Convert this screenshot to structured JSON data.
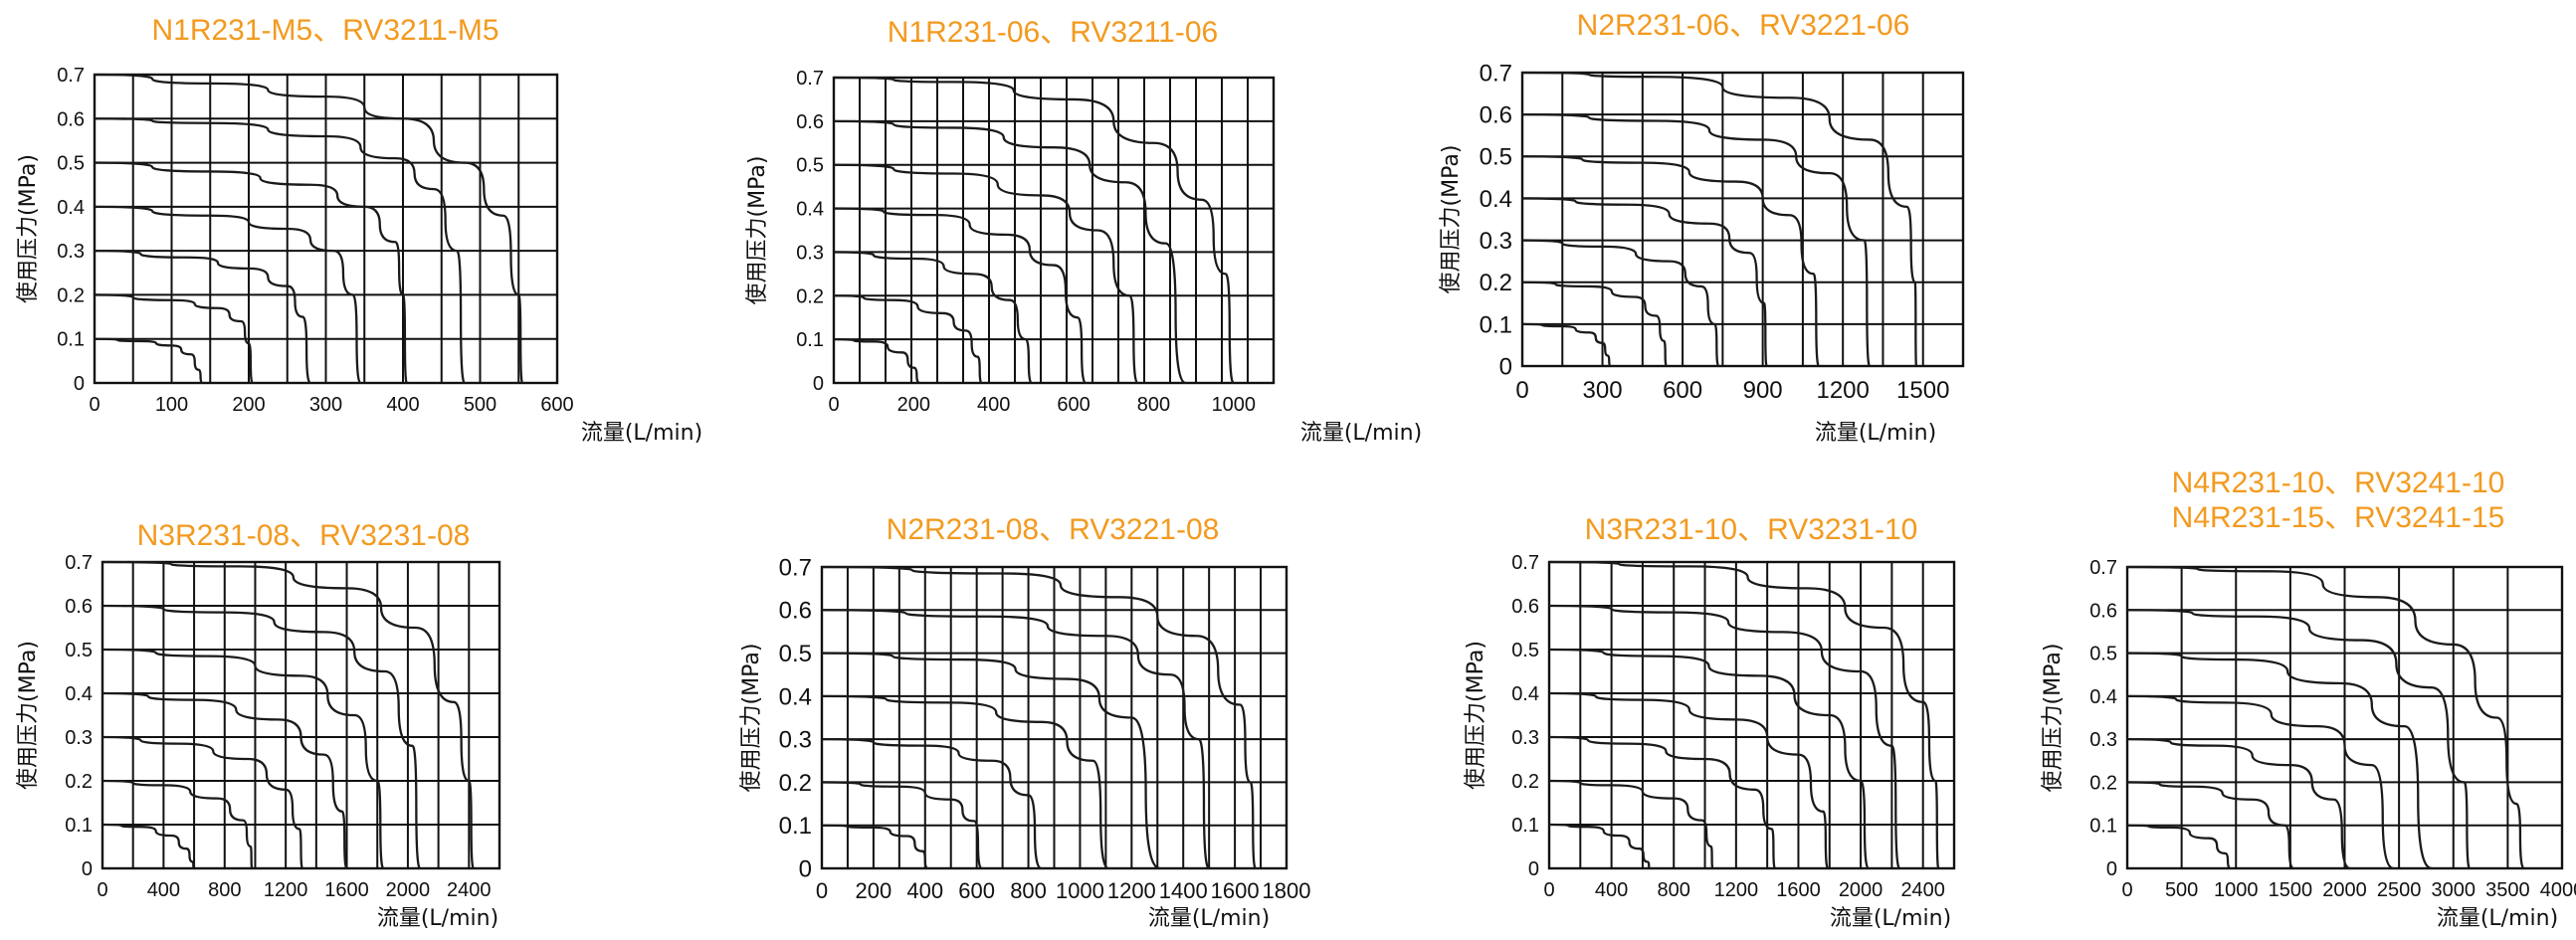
{
  "chart_data": [
    {
      "type": "line",
      "title": "N1R231-M5、RV3211-M5",
      "xlabel": "流量(L/min)",
      "ylabel": "使用压力(MPa)",
      "xlim": [
        0,
        600
      ],
      "ylim": [
        0,
        0.7
      ],
      "xticks": [
        "0",
        "100",
        "200",
        "300",
        "400",
        "500",
        "600"
      ],
      "yticks": [
        "0",
        "0.1",
        "0.2",
        "0.3",
        "0.4",
        "0.5",
        "0.6",
        "0.7"
      ],
      "grid": true,
      "series": [
        {
          "p": 0.1,
          "x": [
            0,
            60,
            100,
            125,
            135,
            140
          ],
          "y": [
            0.1,
            0.095,
            0.085,
            0.065,
            0.03,
            0
          ]
        },
        {
          "p": 0.2,
          "x": [
            0,
            100,
            160,
            190,
            200,
            205
          ],
          "y": [
            0.2,
            0.188,
            0.17,
            0.14,
            0.09,
            0
          ]
        },
        {
          "p": 0.3,
          "x": [
            0,
            120,
            200,
            250,
            270,
            280
          ],
          "y": [
            0.3,
            0.285,
            0.26,
            0.22,
            0.15,
            0
          ]
        },
        {
          "p": 0.4,
          "x": [
            0,
            150,
            250,
            310,
            335,
            345
          ],
          "y": [
            0.4,
            0.38,
            0.35,
            0.3,
            0.2,
            0
          ]
        },
        {
          "p": 0.5,
          "x": [
            0,
            150,
            280,
            350,
            390,
            400,
            405
          ],
          "y": [
            0.5,
            0.48,
            0.45,
            0.4,
            0.32,
            0.2,
            0
          ]
        },
        {
          "p": 0.6,
          "x": [
            0,
            150,
            300,
            390,
            440,
            470,
            480
          ],
          "y": [
            0.6,
            0.59,
            0.56,
            0.51,
            0.44,
            0.3,
            0
          ]
        },
        {
          "p": 0.7,
          "x": [
            0,
            150,
            300,
            400,
            480,
            530,
            550,
            555
          ],
          "y": [
            0.7,
            0.68,
            0.65,
            0.6,
            0.5,
            0.38,
            0.2,
            0
          ]
        }
      ]
    },
    {
      "type": "line",
      "title": "N1R231-06、RV3211-06",
      "xlabel": "流量(L/min)",
      "ylabel": "使用压力(MPa)",
      "xlim": [
        0,
        1100
      ],
      "ylim": [
        0,
        0.7
      ],
      "xticks": [
        "0",
        "200",
        "400",
        "600",
        "800",
        "1000"
      ],
      "yticks": [
        "0",
        "0.1",
        "0.2",
        "0.3",
        "0.4",
        "0.5",
        "0.6",
        "0.7"
      ],
      "grid": true,
      "series": [
        {
          "p": 0.1,
          "x": [
            0,
            100,
            170,
            200,
            215
          ],
          "y": [
            0.1,
            0.095,
            0.07,
            0.035,
            0
          ]
        },
        {
          "p": 0.2,
          "x": [
            0,
            150,
            270,
            330,
            360,
            370
          ],
          "y": [
            0.2,
            0.19,
            0.16,
            0.12,
            0.06,
            0
          ]
        },
        {
          "p": 0.3,
          "x": [
            0,
            200,
            350,
            440,
            480,
            495
          ],
          "y": [
            0.3,
            0.285,
            0.25,
            0.19,
            0.1,
            0
          ]
        },
        {
          "p": 0.4,
          "x": [
            0,
            250,
            430,
            550,
            610,
            630
          ],
          "y": [
            0.4,
            0.385,
            0.34,
            0.27,
            0.15,
            0
          ]
        },
        {
          "p": 0.5,
          "x": [
            0,
            300,
            520,
            660,
            740,
            760
          ],
          "y": [
            0.5,
            0.48,
            0.43,
            0.35,
            0.2,
            0
          ]
        },
        {
          "p": 0.6,
          "x": [
            0,
            300,
            550,
            730,
            830,
            880
          ],
          "y": [
            0.6,
            0.585,
            0.54,
            0.46,
            0.32,
            0
          ]
        },
        {
          "p": 0.7,
          "x": [
            0,
            300,
            600,
            800,
            920,
            980,
            1000
          ],
          "y": [
            0.7,
            0.69,
            0.65,
            0.55,
            0.42,
            0.25,
            0
          ]
        }
      ]
    },
    {
      "type": "line",
      "title": "N2R231-06、RV3221-06",
      "xlabel": "流量(L/min)",
      "ylabel": "使用压力(MPa)",
      "xlim": [
        0,
        1650
      ],
      "ylim": [
        0,
        0.7
      ],
      "xticks": [
        "0",
        "300",
        "600",
        "900",
        "1200",
        "1500"
      ],
      "yticks": [
        "0",
        "0.1",
        "0.2",
        "0.3",
        "0.4",
        "0.5",
        "0.6",
        "0.7"
      ],
      "grid": true,
      "series": [
        {
          "p": 0.1,
          "x": [
            0,
            150,
            250,
            300,
            320,
            330
          ],
          "y": [
            0.1,
            0.095,
            0.08,
            0.055,
            0.025,
            0
          ]
        },
        {
          "p": 0.2,
          "x": [
            0,
            250,
            420,
            500,
            530,
            540
          ],
          "y": [
            0.2,
            0.19,
            0.165,
            0.12,
            0.06,
            0
          ]
        },
        {
          "p": 0.3,
          "x": [
            0,
            300,
            550,
            670,
            720,
            735
          ],
          "y": [
            0.3,
            0.285,
            0.25,
            0.19,
            0.1,
            0
          ]
        },
        {
          "p": 0.4,
          "x": [
            0,
            400,
            700,
            850,
            905,
            915
          ],
          "y": [
            0.4,
            0.385,
            0.34,
            0.27,
            0.15,
            0
          ]
        },
        {
          "p": 0.5,
          "x": [
            0,
            450,
            800,
            1000,
            1090,
            1110
          ],
          "y": [
            0.5,
            0.485,
            0.44,
            0.36,
            0.22,
            0
          ]
        },
        {
          "p": 0.6,
          "x": [
            0,
            500,
            900,
            1150,
            1280,
            1300
          ],
          "y": [
            0.6,
            0.585,
            0.54,
            0.46,
            0.3,
            0
          ]
        },
        {
          "p": 0.7,
          "x": [
            0,
            500,
            1000,
            1300,
            1440,
            1470,
            1475
          ],
          "y": [
            0.7,
            0.69,
            0.64,
            0.54,
            0.38,
            0.2,
            0
          ]
        }
      ]
    },
    {
      "type": "line",
      "title": "N3R231-08、RV3231-08",
      "xlabel": "流量(L/min)",
      "ylabel": "使用压力(MPa)",
      "xlim": [
        0,
        2600
      ],
      "ylim": [
        0,
        0.7
      ],
      "xticks": [
        "0",
        "400",
        "800",
        "1200",
        "1600",
        "2000",
        "2400"
      ],
      "yticks": [
        "0",
        "0.1",
        "0.2",
        "0.3",
        "0.4",
        "0.5",
        "0.6",
        "0.7"
      ],
      "grid": true,
      "series": [
        {
          "p": 0.1,
          "x": [
            0,
            250,
            450,
            550,
            590,
            600
          ],
          "y": [
            0.1,
            0.095,
            0.075,
            0.045,
            0.015,
            0
          ]
        },
        {
          "p": 0.2,
          "x": [
            0,
            400,
            750,
            920,
            970,
            980
          ],
          "y": [
            0.2,
            0.19,
            0.16,
            0.11,
            0.05,
            0
          ]
        },
        {
          "p": 0.3,
          "x": [
            0,
            500,
            950,
            1200,
            1290,
            1310
          ],
          "y": [
            0.3,
            0.285,
            0.25,
            0.18,
            0.09,
            0
          ]
        },
        {
          "p": 0.4,
          "x": [
            0,
            600,
            1150,
            1450,
            1570,
            1600
          ],
          "y": [
            0.4,
            0.385,
            0.34,
            0.26,
            0.13,
            0
          ]
        },
        {
          "p": 0.5,
          "x": [
            0,
            700,
            1300,
            1650,
            1800,
            1840
          ],
          "y": [
            0.5,
            0.485,
            0.44,
            0.35,
            0.2,
            0
          ]
        },
        {
          "p": 0.6,
          "x": [
            0,
            800,
            1450,
            1850,
            2030,
            2080
          ],
          "y": [
            0.6,
            0.585,
            0.54,
            0.45,
            0.28,
            0
          ]
        },
        {
          "p": 0.7,
          "x": [
            0,
            900,
            1600,
            2050,
            2300,
            2400,
            2430
          ],
          "y": [
            0.7,
            0.69,
            0.64,
            0.55,
            0.38,
            0.2,
            0
          ]
        }
      ]
    },
    {
      "type": "line",
      "title": "N2R231-08、RV3221-08",
      "xlabel": "流量(L/min)",
      "ylabel": "使用压力(MPa)",
      "xlim": [
        0,
        1800
      ],
      "ylim": [
        0,
        0.7
      ],
      "xticks": [
        "0",
        "200",
        "400",
        "600",
        "800",
        "1000",
        "1200",
        "1400",
        "1600",
        "1800"
      ],
      "yticks": [
        "0",
        "0.1",
        "0.2",
        "0.3",
        "0.4",
        "0.5",
        "0.6",
        "0.7"
      ],
      "grid": true,
      "series": [
        {
          "p": 0.1,
          "x": [
            0,
            200,
            330,
            390,
            410
          ],
          "y": [
            0.1,
            0.095,
            0.075,
            0.04,
            0
          ]
        },
        {
          "p": 0.2,
          "x": [
            0,
            300,
            500,
            590,
            620
          ],
          "y": [
            0.2,
            0.19,
            0.16,
            0.11,
            0
          ]
        },
        {
          "p": 0.3,
          "x": [
            0,
            400,
            660,
            800,
            850
          ],
          "y": [
            0.3,
            0.285,
            0.25,
            0.17,
            0
          ]
        },
        {
          "p": 0.4,
          "x": [
            0,
            500,
            850,
            1050,
            1110
          ],
          "y": [
            0.4,
            0.385,
            0.34,
            0.25,
            0
          ]
        },
        {
          "p": 0.5,
          "x": [
            0,
            550,
            950,
            1200,
            1310
          ],
          "y": [
            0.5,
            0.485,
            0.44,
            0.35,
            0
          ]
        },
        {
          "p": 0.6,
          "x": [
            0,
            650,
            1100,
            1350,
            1460,
            1500
          ],
          "y": [
            0.6,
            0.585,
            0.54,
            0.45,
            0.3,
            0
          ]
        },
        {
          "p": 0.7,
          "x": [
            0,
            700,
            1150,
            1450,
            1620,
            1660,
            1680
          ],
          "y": [
            0.7,
            0.685,
            0.63,
            0.54,
            0.38,
            0.2,
            0
          ]
        }
      ]
    },
    {
      "type": "line",
      "title": "N3R231-10、RV3231-10",
      "xlabel": "流量(L/min)",
      "ylabel": "使用压力(MPa)",
      "xlim": [
        0,
        2600
      ],
      "ylim": [
        0,
        0.7
      ],
      "xticks": [
        "0",
        "400",
        "800",
        "1200",
        "1600",
        "2000",
        "2400"
      ],
      "yticks": [
        "0",
        "0.1",
        "0.2",
        "0.3",
        "0.4",
        "0.5",
        "0.6",
        "0.7"
      ],
      "grid": true,
      "series": [
        {
          "p": 0.1,
          "x": [
            0,
            250,
            450,
            580,
            630,
            650
          ],
          "y": [
            0.1,
            0.095,
            0.075,
            0.045,
            0.015,
            0
          ]
        },
        {
          "p": 0.2,
          "x": [
            0,
            400,
            800,
            980,
            1040,
            1050
          ],
          "y": [
            0.2,
            0.19,
            0.16,
            0.11,
            0.05,
            0
          ]
        },
        {
          "p": 0.3,
          "x": [
            0,
            500,
            1000,
            1320,
            1430,
            1450
          ],
          "y": [
            0.3,
            0.285,
            0.25,
            0.18,
            0.09,
            0
          ]
        },
        {
          "p": 0.4,
          "x": [
            0,
            600,
            1200,
            1600,
            1760,
            1790
          ],
          "y": [
            0.4,
            0.385,
            0.34,
            0.26,
            0.13,
            0
          ]
        },
        {
          "p": 0.5,
          "x": [
            0,
            700,
            1350,
            1800,
            2000,
            2050
          ],
          "y": [
            0.5,
            0.485,
            0.44,
            0.35,
            0.2,
            0
          ]
        },
        {
          "p": 0.6,
          "x": [
            0,
            800,
            1500,
            2000,
            2200,
            2250
          ],
          "y": [
            0.6,
            0.585,
            0.54,
            0.45,
            0.28,
            0
          ]
        },
        {
          "p": 0.7,
          "x": [
            0,
            900,
            1650,
            2150,
            2400,
            2480,
            2500
          ],
          "y": [
            0.7,
            0.69,
            0.64,
            0.55,
            0.38,
            0.2,
            0
          ]
        }
      ]
    },
    {
      "type": "line",
      "title": "N4R231-10、RV3241-10",
      "subtitle": "N4R231-15、RV3241-15",
      "xlabel": "流量(L/min)",
      "ylabel": "使用压力(MPa)",
      "xlim": [
        0,
        4000
      ],
      "ylim": [
        0,
        0.7
      ],
      "xticks": [
        "0",
        "500",
        "1000",
        "1500",
        "2000",
        "2500",
        "3000",
        "3500",
        "4000"
      ],
      "yticks": [
        "0",
        "0.1",
        "0.2",
        "0.3",
        "0.4",
        "0.5",
        "0.6",
        "0.7"
      ],
      "grid": true,
      "series": [
        {
          "p": 0.1,
          "x": [
            0,
            400,
            750,
            900,
            950
          ],
          "y": [
            0.1,
            0.095,
            0.07,
            0.035,
            0
          ]
        },
        {
          "p": 0.2,
          "x": [
            0,
            600,
            1150,
            1450,
            1530
          ],
          "y": [
            0.2,
            0.19,
            0.16,
            0.1,
            0
          ]
        },
        {
          "p": 0.3,
          "x": [
            0,
            800,
            1500,
            1900,
            2050
          ],
          "y": [
            0.3,
            0.285,
            0.24,
            0.16,
            0
          ]
        },
        {
          "p": 0.4,
          "x": [
            0,
            900,
            1750,
            2250,
            2450
          ],
          "y": [
            0.4,
            0.385,
            0.33,
            0.24,
            0
          ]
        },
        {
          "p": 0.5,
          "x": [
            0,
            1000,
            1950,
            2550,
            2800
          ],
          "y": [
            0.5,
            0.485,
            0.43,
            0.33,
            0
          ]
        },
        {
          "p": 0.6,
          "x": [
            0,
            1200,
            2150,
            2800,
            3100,
            3150
          ],
          "y": [
            0.6,
            0.585,
            0.53,
            0.42,
            0.2,
            0
          ]
        },
        {
          "p": 0.7,
          "x": [
            0,
            1300,
            2300,
            3000,
            3400,
            3580,
            3650
          ],
          "y": [
            0.7,
            0.69,
            0.63,
            0.52,
            0.35,
            0.15,
            0
          ]
        }
      ]
    }
  ]
}
